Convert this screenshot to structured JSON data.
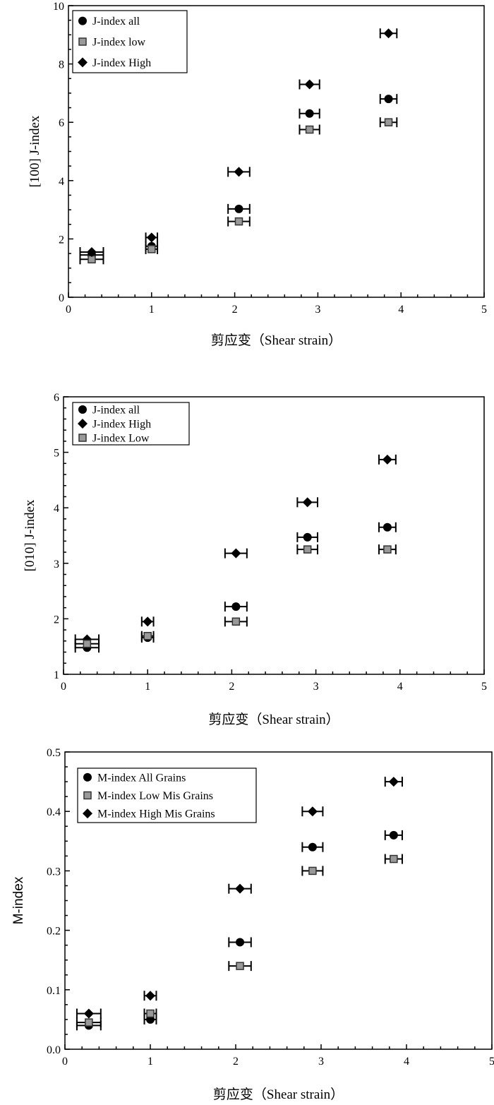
{
  "chart_data": [
    {
      "type": "scatter",
      "xlabel": "剪应变（Shear strain）",
      "ylabel": "[100] J-index",
      "xlim": [
        0,
        5
      ],
      "ylim": [
        0,
        10
      ],
      "xticks": [
        0,
        1,
        2,
        3,
        4,
        5
      ],
      "yticks": [
        0,
        2,
        4,
        6,
        8,
        10
      ],
      "grid": false,
      "legend_position": "top-left",
      "x": [
        0.28,
        1.0,
        2.05,
        2.9,
        3.85
      ],
      "x_error": [
        0.14,
        0.07,
        0.13,
        0.12,
        0.1
      ],
      "series": [
        {
          "name": "J-index all",
          "marker": "circle",
          "values": [
            1.45,
            1.75,
            3.03,
            6.3,
            6.8
          ]
        },
        {
          "name": "J-index low",
          "marker": "square",
          "values": [
            1.3,
            1.65,
            2.6,
            5.75,
            6.0
          ]
        },
        {
          "name": "J-index High",
          "marker": "diamond",
          "values": [
            1.55,
            2.05,
            4.3,
            7.3,
            9.05
          ]
        }
      ]
    },
    {
      "type": "scatter",
      "xlabel": "剪应变（Shear strain）",
      "ylabel": "[010]  J-index",
      "xlim": [
        0,
        5
      ],
      "ylim": [
        1,
        6
      ],
      "xticks": [
        0,
        1,
        2,
        3,
        4,
        5
      ],
      "yticks": [
        1,
        2,
        3,
        4,
        5,
        6
      ],
      "grid": false,
      "legend_position": "top-left",
      "x": [
        0.28,
        1.0,
        2.05,
        2.9,
        3.85
      ],
      "x_error": [
        0.14,
        0.07,
        0.13,
        0.12,
        0.1
      ],
      "series": [
        {
          "name": "J-index all",
          "marker": "circle",
          "values": [
            1.48,
            1.66,
            2.22,
            3.47,
            3.65
          ]
        },
        {
          "name": "J-index High",
          "marker": "diamond",
          "values": [
            1.63,
            1.95,
            3.18,
            4.1,
            4.87
          ]
        },
        {
          "name": "J-index Low",
          "marker": "square",
          "values": [
            1.55,
            1.69,
            1.95,
            3.25,
            3.25
          ]
        }
      ]
    },
    {
      "type": "scatter",
      "xlabel": "剪应变（Shear strain）",
      "ylabel": "M-index",
      "xlim": [
        0,
        5
      ],
      "ylim": [
        0,
        0.5
      ],
      "xticks": [
        0,
        1,
        2,
        3,
        4,
        5
      ],
      "yticks": [
        "0.0",
        "0.1",
        "0.2",
        "0.3",
        "0.4",
        "0.5"
      ],
      "grid": false,
      "legend_position": "top-left",
      "x": [
        0.28,
        1.0,
        2.05,
        2.9,
        3.85
      ],
      "x_error": [
        0.14,
        0.07,
        0.13,
        0.12,
        0.1
      ],
      "series": [
        {
          "name": "M-index All Grains",
          "marker": "circle",
          "values": [
            0.04,
            0.05,
            0.18,
            0.34,
            0.36
          ]
        },
        {
          "name": "M-index Low Mis Grains",
          "marker": "square",
          "values": [
            0.045,
            0.06,
            0.14,
            0.3,
            0.32
          ]
        },
        {
          "name": "M-index High Mis Grains",
          "marker": "diamond",
          "values": [
            0.06,
            0.09,
            0.27,
            0.4,
            0.45
          ]
        }
      ]
    }
  ],
  "colors": {
    "axis": "#000000",
    "circle": "#000000",
    "diamond": "#000000",
    "square": "#999999"
  }
}
